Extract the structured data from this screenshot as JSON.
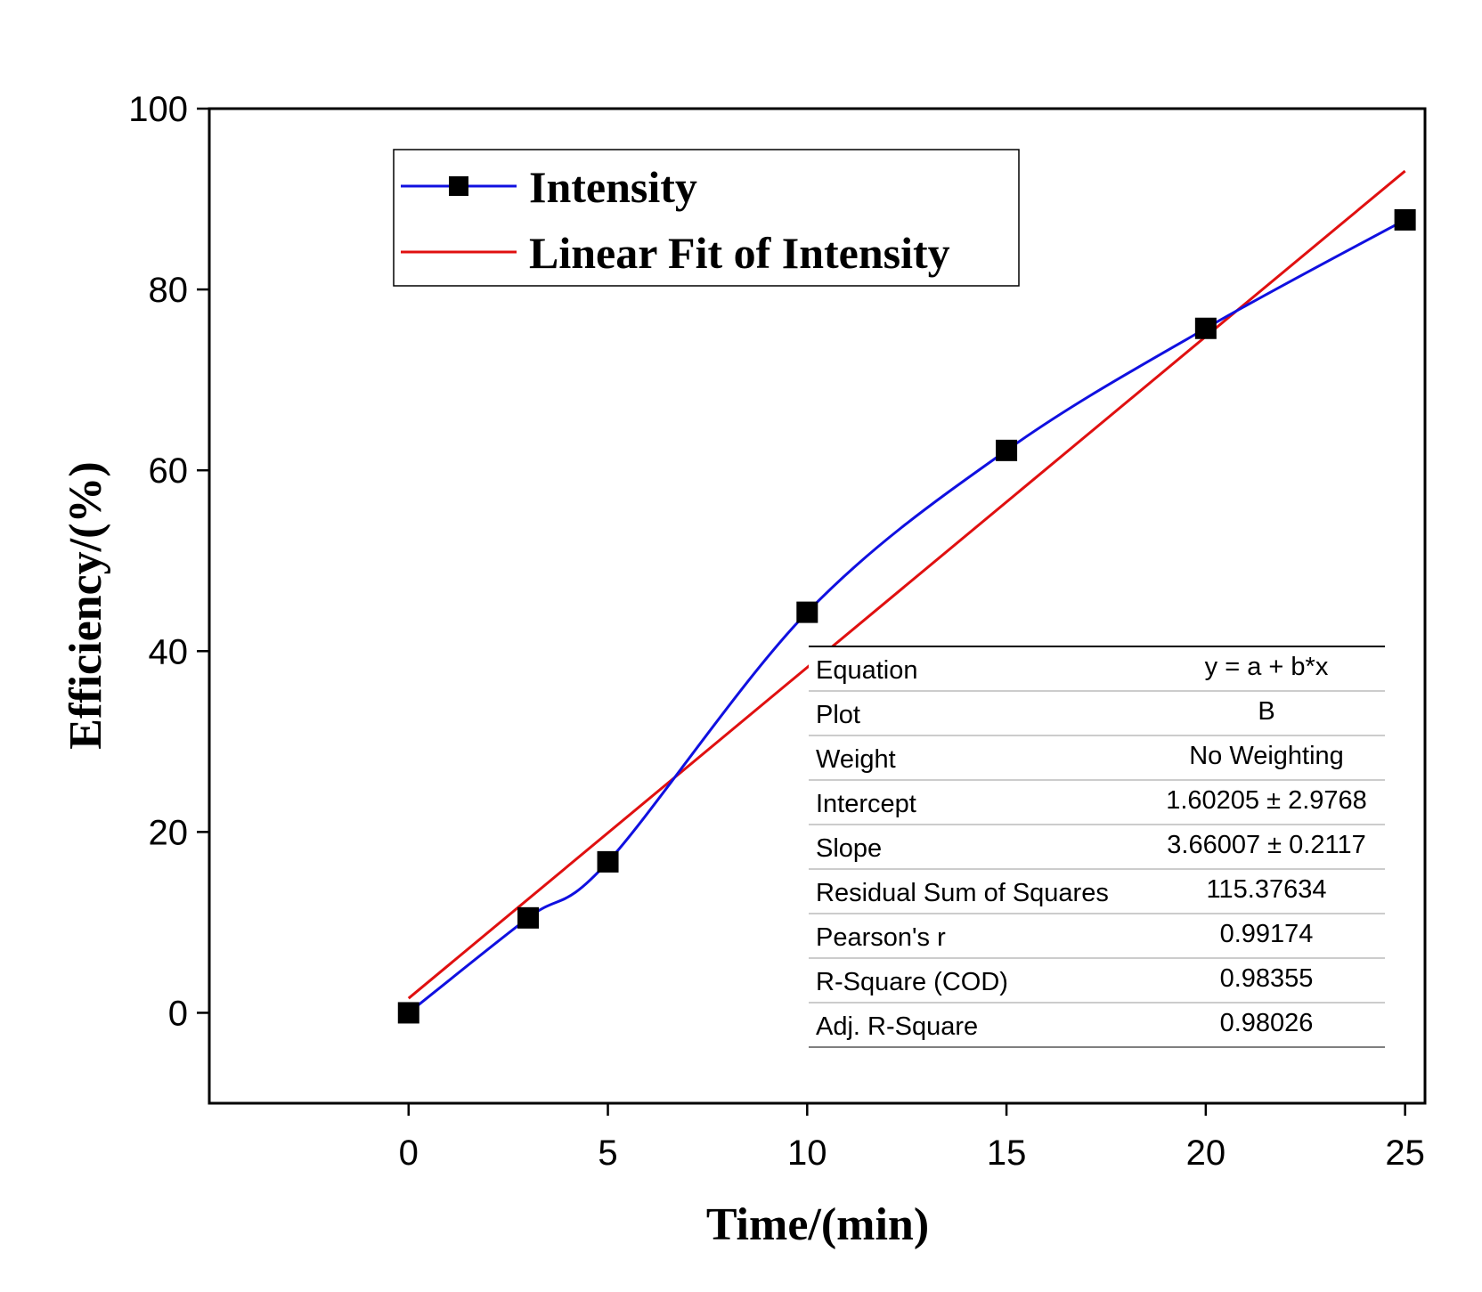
{
  "chart_data": {
    "type": "line",
    "xlabel": "Time/(min)",
    "ylabel": "Efficiency/(%)",
    "xlim": [
      -5,
      25.5
    ],
    "ylim": [
      -10,
      100
    ],
    "xticks": [
      0,
      5,
      10,
      15,
      20,
      25
    ],
    "yticks": [
      0,
      20,
      40,
      60,
      80,
      100
    ],
    "grid": false,
    "legend_position": "top-left",
    "series": [
      {
        "name": "Intensity",
        "style": "line-with-square-markers",
        "color": "#1010e0",
        "marker_color": "#000000",
        "x": [
          0,
          3,
          5,
          10,
          15,
          20,
          25
        ],
        "y": [
          0,
          10.5,
          16.7,
          44.3,
          62.2,
          75.7,
          87.7
        ]
      },
      {
        "name": "Linear Fit of Intensity",
        "style": "line",
        "color": "#e01010",
        "x": [
          0,
          25
        ],
        "y": [
          1.6,
          93.1
        ]
      }
    ],
    "fit_table": {
      "rows": [
        {
          "label": "Equation",
          "value": "y = a + b*x"
        },
        {
          "label": "Plot",
          "value": "B"
        },
        {
          "label": "Weight",
          "value": "No Weighting"
        },
        {
          "label": "Intercept",
          "value": "1.60205 ± 2.9768"
        },
        {
          "label": "Slope",
          "value": "3.66007 ± 0.2117"
        },
        {
          "label": "Residual Sum of Squares",
          "value": "115.37634"
        },
        {
          "label": "Pearson's r",
          "value": "0.99174"
        },
        {
          "label": "R-Square (COD)",
          "value": "0.98355"
        },
        {
          "label": "Adj. R-Square",
          "value": "0.98026"
        }
      ]
    }
  }
}
